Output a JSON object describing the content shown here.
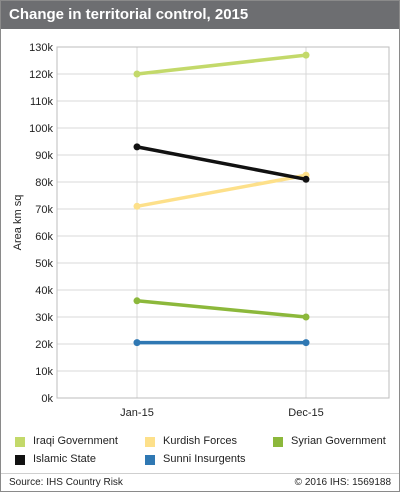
{
  "header": {
    "title": "Change in territorial control, 2015"
  },
  "footer": {
    "source": "Source: IHS Country Risk",
    "copyright": "© 2016 IHS: 1569188"
  },
  "colors": {
    "header_bg": "#6d6e71",
    "gridline": "#d9d9d9"
  },
  "chart_data": {
    "type": "line",
    "title": "",
    "ylabel": "Area km sq",
    "xlabel": "",
    "x": [
      "Jan-15",
      "Dec-15"
    ],
    "ylim": [
      0,
      130000
    ],
    "yticks": [
      0,
      10000,
      20000,
      30000,
      40000,
      50000,
      60000,
      70000,
      80000,
      90000,
      100000,
      110000,
      120000,
      130000
    ],
    "ytick_labels": [
      "0k",
      "10k",
      "20k",
      "30k",
      "40k",
      "50k",
      "60k",
      "70k",
      "80k",
      "90k",
      "100k",
      "110k",
      "120k",
      "130k"
    ],
    "grid": true,
    "legend_position": "bottom",
    "series": [
      {
        "name": "Iraqi Government",
        "color": "#c3d96a",
        "values": [
          120000,
          127000
        ]
      },
      {
        "name": "Kurdish Forces",
        "color": "#fde08a",
        "values": [
          71000,
          82500
        ]
      },
      {
        "name": "Syrian Government",
        "color": "#8cb83b",
        "values": [
          36000,
          30000
        ]
      },
      {
        "name": "Islamic State",
        "color": "#111111",
        "values": [
          93000,
          81000
        ]
      },
      {
        "name": "Sunni Insurgents",
        "color": "#2f78b3",
        "values": [
          20500,
          20500
        ]
      }
    ]
  }
}
